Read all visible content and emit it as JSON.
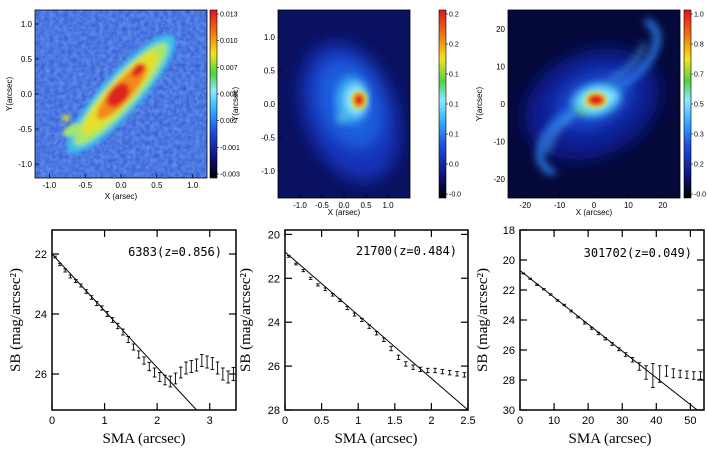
{
  "chart_data": [
    {
      "id": "map1",
      "type": "heatmap",
      "xlabel": "X (arsec)",
      "ylabel": "Y(arcsec)",
      "xlim": [
        -1.2,
        1.2
      ],
      "ylim": [
        -1.2,
        1.2
      ],
      "xticks": [
        "-1.0",
        "-0.5",
        "0.0",
        "0.5",
        "1.0"
      ],
      "yticks": [
        "-1.0",
        "-0.5",
        "0.0",
        "0.5",
        "1.0"
      ],
      "colorbar_labels": [
        "0.013",
        "0.010",
        "0.007",
        "0.005",
        "0.002",
        "-0.001",
        "-0.003"
      ],
      "structure": "elongated diagonal disk, position angle ~45 degrees"
    },
    {
      "id": "map2",
      "type": "heatmap",
      "xlabel": "X (arsec)",
      "ylabel": "Y(arcsec)",
      "xlim": [
        -1.5,
        1.5
      ],
      "ylim": [
        -1.4,
        1.4
      ],
      "xticks": [
        "-1.0",
        "-0.5",
        "0.0",
        "0.5",
        "1.0"
      ],
      "yticks": [
        "-1.0",
        "-0.5",
        "0.0",
        "0.5",
        "1.0"
      ],
      "colorbar_labels": [
        "0.2",
        "0.2",
        "0.1",
        "0.1",
        "0.1",
        "0.0",
        "-0.0"
      ],
      "structure": "compact bright nucleus with faint extended halo"
    },
    {
      "id": "map3",
      "type": "heatmap",
      "xlabel": "X (arcsec)",
      "ylabel": "Y(arcsec)",
      "xlim": [
        -25,
        25
      ],
      "ylim": [
        -25,
        25
      ],
      "xticks": [
        "-20",
        "-10",
        "0",
        "10",
        "20"
      ],
      "yticks": [
        "-20",
        "-10",
        "0",
        "10",
        "20"
      ],
      "colorbar_labels": [
        "1.0",
        "0.8",
        "0.7",
        "0.5",
        "0.3",
        "0.2",
        "-0.0"
      ],
      "structure": "bright nucleus with spiral arms"
    },
    {
      "id": "sb1",
      "type": "scatter",
      "annotation": "6383(z=0.856)",
      "xlabel": "SMA (arcsec)",
      "ylabel": "SB (mag/arcsec²)",
      "xlim": [
        0,
        3.5
      ],
      "ylim": [
        27.2,
        21.2
      ],
      "xticks": [
        "0",
        "1",
        "2",
        "3"
      ],
      "yticks": [
        "22",
        "24",
        "26"
      ],
      "fit_line": {
        "x": [
          0,
          2.75
        ],
        "y": [
          22.0,
          27.2
        ]
      },
      "x": [
        0.06,
        0.15,
        0.25,
        0.35,
        0.45,
        0.55,
        0.65,
        0.75,
        0.85,
        0.95,
        1.05,
        1.15,
        1.25,
        1.35,
        1.45,
        1.55,
        1.65,
        1.75,
        1.85,
        1.95,
        2.05,
        2.15,
        2.25,
        2.35,
        2.45,
        2.55,
        2.65,
        2.75,
        2.85,
        2.95,
        3.05,
        3.15,
        3.25,
        3.35,
        3.45
      ],
      "y": [
        22.1,
        22.35,
        22.55,
        22.75,
        22.9,
        23.05,
        23.25,
        23.45,
        23.65,
        23.8,
        24.0,
        24.2,
        24.4,
        24.6,
        24.85,
        25.1,
        25.35,
        25.55,
        25.75,
        25.95,
        26.1,
        26.2,
        26.25,
        26.15,
        25.95,
        25.8,
        25.75,
        25.7,
        25.55,
        25.6,
        25.65,
        25.8,
        26.0,
        26.1,
        26.0
      ],
      "err": [
        0.03,
        0.04,
        0.05,
        0.05,
        0.05,
        0.05,
        0.06,
        0.06,
        0.07,
        0.07,
        0.08,
        0.08,
        0.09,
        0.1,
        0.1,
        0.1,
        0.12,
        0.12,
        0.14,
        0.15,
        0.15,
        0.16,
        0.18,
        0.18,
        0.18,
        0.2,
        0.2,
        0.2,
        0.2,
        0.2,
        0.2,
        0.2,
        0.2,
        0.2,
        0.22
      ]
    },
    {
      "id": "sb2",
      "type": "scatter",
      "annotation": "21700(z=0.484)",
      "xlabel": "SMA (arcsec)",
      "ylabel": "SB (mag/arcsec²)",
      "xlim": [
        0,
        2.5
      ],
      "ylim": [
        28,
        19.8
      ],
      "xticks": [
        "0",
        "0.5",
        "1",
        "1.5",
        "2",
        "2.5"
      ],
      "yticks": [
        "20",
        "22",
        "24",
        "26",
        "28"
      ],
      "fit_line": {
        "x": [
          0,
          2.5
        ],
        "y": [
          20.8,
          28.0
        ]
      },
      "x": [
        0.05,
        0.15,
        0.25,
        0.35,
        0.45,
        0.55,
        0.65,
        0.75,
        0.85,
        0.95,
        1.05,
        1.15,
        1.25,
        1.35,
        1.45,
        1.55,
        1.65,
        1.75,
        1.85,
        1.95,
        2.05,
        2.15,
        2.25,
        2.35,
        2.45
      ],
      "y": [
        21.0,
        21.35,
        21.65,
        22.0,
        22.3,
        22.5,
        22.75,
        23.0,
        23.35,
        23.65,
        23.9,
        24.2,
        24.5,
        24.8,
        25.2,
        25.6,
        25.9,
        26.05,
        26.15,
        26.2,
        26.2,
        26.25,
        26.3,
        26.35,
        26.4
      ],
      "err": [
        0.04,
        0.04,
        0.05,
        0.05,
        0.05,
        0.06,
        0.06,
        0.06,
        0.07,
        0.07,
        0.07,
        0.08,
        0.08,
        0.08,
        0.1,
        0.1,
        0.1,
        0.1,
        0.1,
        0.1,
        0.1,
        0.1,
        0.1,
        0.1,
        0.1
      ]
    },
    {
      "id": "sb3",
      "type": "scatter",
      "annotation": "301702(z=0.049)",
      "xlabel": "SMA (arcsec)",
      "ylabel": "SB (mag/arcsec²)",
      "xlim": [
        0,
        54
      ],
      "ylim": [
        30,
        18
      ],
      "xticks": [
        "0",
        "10",
        "20",
        "30",
        "40",
        "50"
      ],
      "yticks": [
        "18",
        "20",
        "22",
        "24",
        "26",
        "28",
        "30"
      ],
      "fit_line": {
        "x": [
          0,
          52
        ],
        "y": [
          20.7,
          30.0
        ]
      },
      "x": [
        1,
        3,
        5,
        7,
        9,
        11,
        13,
        15,
        17,
        19,
        21,
        23,
        25,
        27,
        29,
        31,
        33,
        35,
        37,
        39,
        41,
        43,
        45,
        47,
        49,
        51,
        53
      ],
      "y": [
        20.9,
        21.25,
        21.65,
        21.95,
        22.3,
        22.7,
        23.0,
        23.4,
        23.8,
        24.2,
        24.55,
        24.9,
        25.25,
        25.6,
        25.95,
        26.3,
        26.65,
        27.1,
        27.5,
        27.7,
        27.6,
        27.4,
        27.55,
        27.6,
        27.65,
        27.7,
        27.7
      ],
      "err": [
        0.03,
        0.04,
        0.04,
        0.04,
        0.05,
        0.05,
        0.05,
        0.06,
        0.06,
        0.07,
        0.07,
        0.08,
        0.08,
        0.09,
        0.1,
        0.12,
        0.15,
        0.25,
        0.45,
        0.8,
        0.55,
        0.35,
        0.3,
        0.25,
        0.25,
        0.25,
        0.25
      ]
    }
  ]
}
